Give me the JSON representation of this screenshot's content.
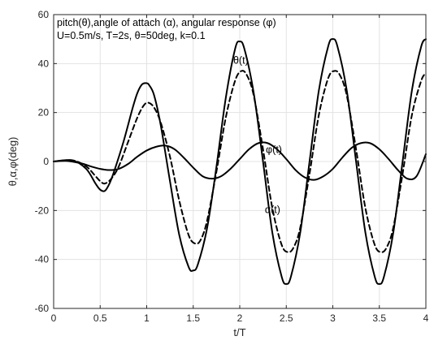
{
  "chart_data": {
    "type": "line",
    "title_lines": [
      "pitch(θ),angle of attach (α), angular response (φ)",
      "U=0.5m/s, T=2s, θ=50deg, k=0.1"
    ],
    "xlabel": "t/T",
    "ylabel": "θ,α,φ(deg)",
    "xlim": [
      0,
      4
    ],
    "ylim": [
      -60,
      60
    ],
    "xticks": [
      0,
      0.5,
      1,
      1.5,
      2,
      2.5,
      3,
      3.5,
      4
    ],
    "xtick_labels": [
      "0",
      "0.5",
      "1",
      "1.5",
      "2",
      "2.5",
      "3",
      "3.5",
      "4"
    ],
    "yticks": [
      -60,
      -40,
      -20,
      0,
      20,
      40,
      60
    ],
    "ytick_labels": [
      "-60",
      "-40",
      "-20",
      "0",
      "20",
      "40",
      "60"
    ],
    "grid": true,
    "series": [
      {
        "name": "θ(t)",
        "style": "solid",
        "color": "#000000",
        "x": [
          0,
          0.2,
          0.35,
          0.45,
          0.5,
          0.55,
          0.6,
          0.65,
          0.75,
          0.85,
          0.9,
          0.95,
          1.0,
          1.03,
          1.08,
          1.15,
          1.25,
          1.35,
          1.45,
          1.5,
          1.55,
          1.65,
          1.75,
          1.85,
          1.95,
          2.0,
          2.05,
          2.15,
          2.25,
          2.35,
          2.45,
          2.5,
          2.55,
          2.65,
          2.75,
          2.85,
          2.95,
          3.0,
          3.05,
          3.15,
          3.25,
          3.35,
          3.45,
          3.5,
          3.55,
          3.65,
          3.75,
          3.85,
          3.95,
          4.0
        ],
        "y": [
          0,
          0.5,
          -3,
          -9,
          -11.5,
          -12,
          -9,
          -4,
          8,
          22,
          28,
          31.5,
          32,
          31,
          27,
          15,
          -8,
          -30,
          -43,
          -44.5,
          -42,
          -27,
          -2,
          26,
          46,
          49,
          46,
          28,
          0,
          -29,
          -47,
          -50,
          -47,
          -29,
          0,
          29,
          47,
          50,
          47,
          29,
          0,
          -29,
          -47,
          -50,
          -47,
          -29,
          0,
          29,
          47,
          50
        ]
      },
      {
        "name": "α(t)",
        "style": "dashed",
        "color": "#000000",
        "x": [
          0,
          0.2,
          0.35,
          0.45,
          0.5,
          0.55,
          0.62,
          0.7,
          0.8,
          0.9,
          0.97,
          1.02,
          1.08,
          1.15,
          1.25,
          1.35,
          1.45,
          1.52,
          1.58,
          1.65,
          1.75,
          1.85,
          1.95,
          2.02,
          2.08,
          2.15,
          2.25,
          2.35,
          2.45,
          2.52,
          2.58,
          2.65,
          2.75,
          2.85,
          2.95,
          3.02,
          3.08,
          3.15,
          3.25,
          3.35,
          3.45,
          3.52,
          3.58,
          3.65,
          3.75,
          3.85,
          3.95,
          4.0
        ],
        "y": [
          0,
          0.5,
          -2,
          -6,
          -8,
          -9,
          -7,
          -2,
          8,
          18,
          23,
          24,
          22,
          16,
          2,
          -16,
          -30,
          -33.5,
          -32,
          -24,
          -4,
          18,
          33,
          37,
          35,
          27,
          5,
          -19,
          -34,
          -37,
          -35,
          -27,
          -5,
          19,
          34,
          37,
          35,
          27,
          5,
          -19,
          -34,
          -37,
          -35,
          -27,
          -5,
          19,
          33,
          36
        ]
      },
      {
        "name": "φ(t)",
        "style": "solid",
        "color": "#000000",
        "x": [
          0,
          0.15,
          0.3,
          0.4,
          0.5,
          0.6,
          0.7,
          0.8,
          0.9,
          1.0,
          1.1,
          1.2,
          1.3,
          1.4,
          1.5,
          1.6,
          1.7,
          1.8,
          1.9,
          2.0,
          2.1,
          2.2,
          2.3,
          2.4,
          2.5,
          2.6,
          2.7,
          2.8,
          2.9,
          3.0,
          3.1,
          3.2,
          3.3,
          3.4,
          3.5,
          3.6,
          3.7,
          3.8,
          3.9,
          4.0
        ],
        "y": [
          0,
          0.2,
          -0.8,
          -2,
          -3,
          -3.5,
          -3,
          -1,
          2,
          4.5,
          6,
          6.5,
          5,
          1.5,
          -2.5,
          -6,
          -7,
          -6,
          -3,
          1,
          5,
          7.5,
          7.5,
          5,
          1,
          -3.5,
          -6.5,
          -7.5,
          -6,
          -3,
          1.5,
          5.5,
          7.5,
          7.5,
          5,
          1,
          -3.5,
          -7,
          -6,
          3
        ]
      }
    ],
    "annotations": [
      {
        "text": "θ(t)",
        "x": 1.93,
        "y": 40,
        "series": "θ(t)"
      },
      {
        "text": "φ(t)",
        "x": 2.28,
        "y": 3.5,
        "series": "φ(t)"
      },
      {
        "text": "α(t)",
        "x": 2.27,
        "y": -21,
        "series": "α(t)"
      }
    ]
  }
}
